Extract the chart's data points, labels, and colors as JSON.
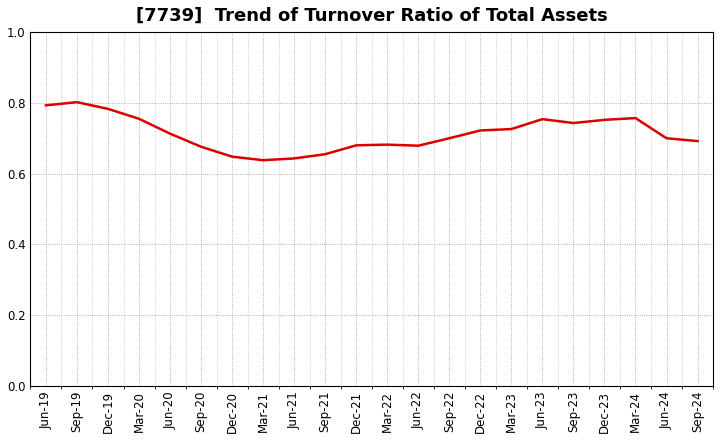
{
  "title": "[7739]  Trend of Turnover Ratio of Total Assets",
  "x_labels": [
    "Jun-19",
    "Sep-19",
    "Dec-19",
    "Mar-20",
    "Jun-20",
    "Sep-20",
    "Dec-20",
    "Mar-21",
    "Jun-21",
    "Sep-21",
    "Dec-21",
    "Mar-22",
    "Jun-22",
    "Sep-22",
    "Dec-22",
    "Mar-23",
    "Jun-23",
    "Sep-23",
    "Dec-23",
    "Mar-24",
    "Jun-24",
    "Sep-24"
  ],
  "y_values": [
    0.793,
    0.802,
    0.783,
    0.755,
    0.713,
    0.676,
    0.648,
    0.638,
    0.643,
    0.655,
    0.68,
    0.682,
    0.679,
    0.7,
    0.722,
    0.726,
    0.754,
    0.743,
    0.752,
    0.757,
    0.7,
    0.692
  ],
  "line_color": "#dd0000",
  "line_width": 1.8,
  "ylim": [
    0.0,
    1.0
  ],
  "yticks": [
    0.0,
    0.2,
    0.4,
    0.6,
    0.8,
    1.0
  ],
  "background_color": "#ffffff",
  "grid_color": "#999999",
  "title_fontsize": 13,
  "tick_fontsize": 8.5
}
